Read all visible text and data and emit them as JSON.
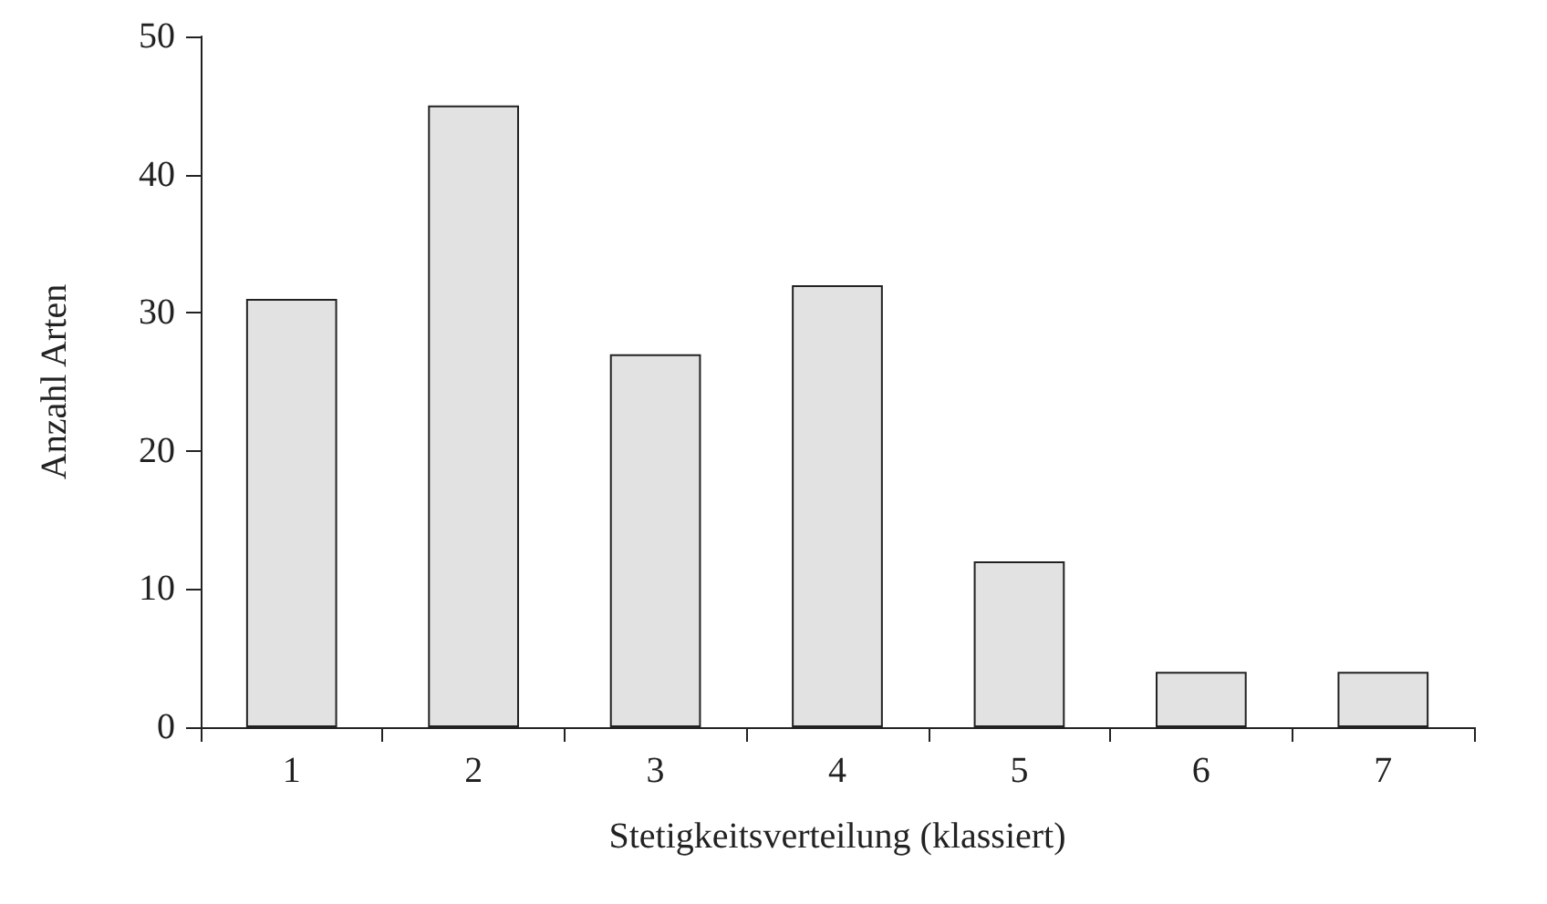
{
  "chart_data": {
    "type": "bar",
    "xlabel": "Stetigkeitsverteilung (klassiert)",
    "ylabel": "Anzahl Arten",
    "categories": [
      "1",
      "2",
      "3",
      "4",
      "5",
      "6",
      "7"
    ],
    "values": [
      31,
      45,
      27,
      32,
      12,
      4,
      4
    ],
    "color": "#e2e2e2",
    "ylim": [
      0,
      50
    ],
    "yticks": [
      0,
      10,
      20,
      30,
      40,
      50
    ],
    "grid": false
  }
}
